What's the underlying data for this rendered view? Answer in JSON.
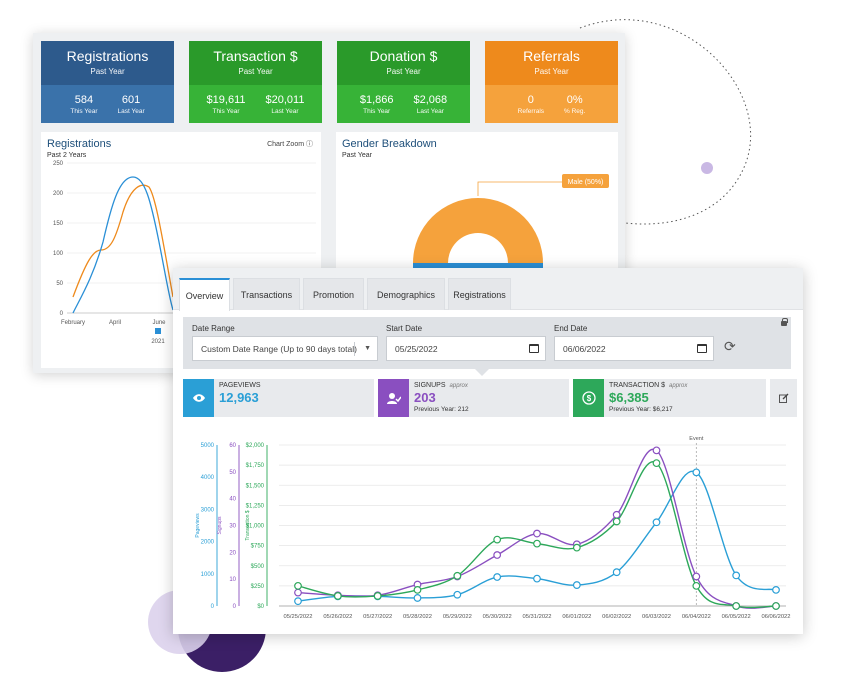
{
  "stat_cards": [
    {
      "title": "Registrations",
      "subtitle": "Past Year",
      "color": "#2d5a8c",
      "values": [
        {
          "value": "584",
          "label": "This Year"
        },
        {
          "value": "601",
          "label": "Last Year"
        }
      ]
    },
    {
      "title": "Transaction $",
      "subtitle": "Past Year",
      "color": "#2a9a2a",
      "values": [
        {
          "value": "$19,611",
          "label": "This Year"
        },
        {
          "value": "$20,011",
          "label": "Last Year"
        }
      ]
    },
    {
      "title": "Donation $",
      "subtitle": "Past Year",
      "color": "#2a9a2a",
      "values": [
        {
          "value": "$1,866",
          "label": "This Year"
        },
        {
          "value": "$2,068",
          "label": "Last Year"
        }
      ]
    },
    {
      "title": "Referrals",
      "subtitle": "Past Year",
      "color": "#ee8a1c",
      "values": [
        {
          "value": "0",
          "label": "Referrals"
        },
        {
          "value": "0%",
          "label": "% Reg."
        }
      ]
    }
  ],
  "registrations_chart": {
    "title": "Registrations",
    "subtitle": "Past 2 Years",
    "zoom_label": "Chart Zoom ⓘ",
    "y_ticks": [
      "250",
      "200",
      "150",
      "100",
      "50",
      "0"
    ],
    "x_ticks": [
      "February",
      "April",
      "June"
    ],
    "legend_label": "2021",
    "colors": {
      "series_a": "#2a8fd6",
      "series_b": "#ee8a1c"
    }
  },
  "gender_chart": {
    "title": "Gender Breakdown",
    "subtitle": "Past Year",
    "label": "Male (50%)",
    "colors": {
      "male": "#f5a23c",
      "female": "#2a8fd6"
    }
  },
  "tabs": [
    {
      "label": "Overview",
      "active": true
    },
    {
      "label": "Transactions",
      "active": false
    },
    {
      "label": "Promotion",
      "active": false
    },
    {
      "label": "Demographics",
      "active": false
    },
    {
      "label": "Registrations",
      "active": false
    }
  ],
  "filters": {
    "date_range_label": "Date Range",
    "date_range_value": "Custom Date Range (Up to 90 days total)",
    "start_date_label": "Start Date",
    "start_date_value": "05/25/2022",
    "end_date_label": "End Date",
    "end_date_value": "06/06/2022"
  },
  "metrics": [
    {
      "label": "PAGEVIEWS",
      "approx": "",
      "value": "12,963",
      "previous": "",
      "color": "#2a9fd6",
      "icon": "eye-icon"
    },
    {
      "label": "SIGNUPS",
      "approx": "approx",
      "value": "203",
      "previous": "Previous Year: 212",
      "color": "#8a4fc0",
      "icon": "user-check-icon"
    },
    {
      "label": "TRANSACTION $",
      "approx": "approx",
      "value": "$6,385",
      "previous": "Previous Year: $6,217",
      "color": "#2da85a",
      "icon": "dollar-icon"
    }
  ],
  "chart_data": {
    "type": "line",
    "x": [
      "05/25/2022",
      "05/26/2022",
      "05/27/2022",
      "05/28/2022",
      "05/29/2022",
      "05/30/2022",
      "05/31/2022",
      "06/01/2022",
      "06/02/2022",
      "06/03/2022",
      "06/04/2022",
      "06/05/2022",
      "06/06/2022"
    ],
    "annotation": {
      "label": "Event",
      "x": "06/04/2022"
    },
    "axes": [
      {
        "id": "pageviews",
        "label": "Pageviews",
        "ticks": [
          "5000",
          "4000",
          "3000",
          "2000",
          "1000",
          "0"
        ],
        "range": [
          0,
          5000
        ],
        "color": "#2a9fd6"
      },
      {
        "id": "signups",
        "label": "Signups",
        "ticks": [
          "60",
          "50",
          "40",
          "30",
          "20",
          "10",
          "0"
        ],
        "range": [
          0,
          60
        ],
        "color": "#8a4fc0"
      },
      {
        "id": "transactions",
        "label": "Transaction $",
        "ticks": [
          "$2,000",
          "$1,750",
          "$1,500",
          "$1,250",
          "$1,000",
          "$750",
          "$500",
          "$250",
          "$0"
        ],
        "range": [
          0,
          2000
        ],
        "color": "#2da85a"
      }
    ],
    "series": [
      {
        "name": "Pageviews",
        "axis": "pageviews",
        "color": "#2a9fd6",
        "values": [
          150,
          300,
          300,
          250,
          350,
          900,
          850,
          650,
          1050,
          2600,
          4150,
          950,
          500
        ]
      },
      {
        "name": "Signups",
        "axis": "signups",
        "color": "#8a4fc0",
        "values": [
          5,
          4,
          4,
          8,
          11,
          19,
          27,
          23,
          34,
          58,
          11,
          0,
          0
        ]
      },
      {
        "name": "Transaction $",
        "axis": "transactions",
        "color": "#2da85a",
        "values": [
          250,
          125,
          125,
          200,
          375,
          825,
          775,
          725,
          1050,
          1775,
          250,
          0,
          0
        ]
      }
    ],
    "grid": true
  }
}
